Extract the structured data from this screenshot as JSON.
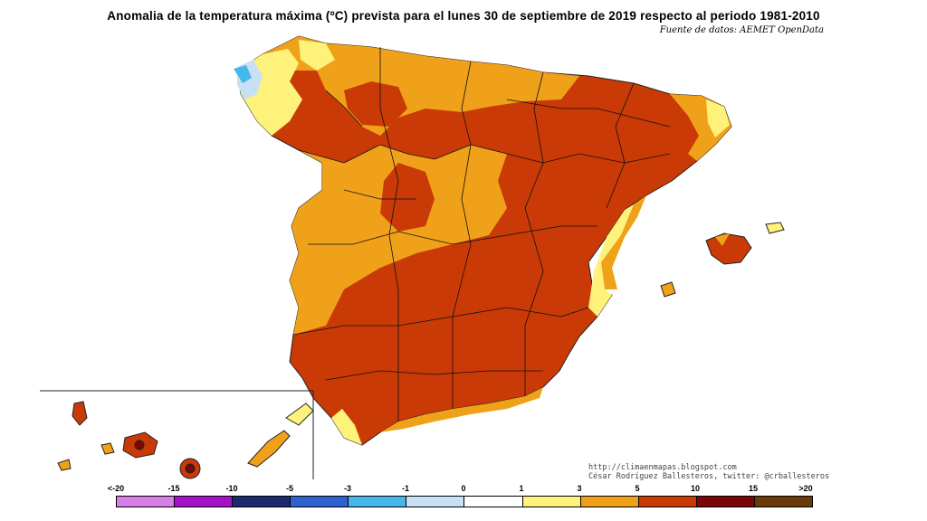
{
  "title": "Anomalia de la temperatura máxima (ºC) prevista para el lunes 30 de septiembre de 2019 respecto al periodo 1981-2010",
  "source": "Fuente de datos: AEMET OpenData",
  "credits": {
    "line1": "http://climaenmapas.blogspot.com",
    "line2": "César Rodríguez Ballesteros, twitter: @crballesteros"
  },
  "legend": {
    "labels": [
      "<-20",
      "-15",
      "-10",
      "-5",
      "-3",
      "-1",
      "0",
      "1",
      "3",
      "5",
      "10",
      "15",
      ">20"
    ],
    "colors": [
      "#d67fe6",
      "#a413c8",
      "#1c2b6e",
      "#2f62d0",
      "#44b8ea",
      "#c8e0f3",
      "#ffffff",
      "#fff27a",
      "#f0a11a",
      "#c93a06",
      "#7a0707",
      "#6a3a0a"
    ]
  },
  "colors": {
    "anomaly_1_3": "#fff27a",
    "anomaly_3_5": "#f0a11a",
    "anomaly_5_10": "#c93a06",
    "anomaly_10_15": "#7a0707",
    "anomaly_-3_-1": "#44b8ea",
    "anomaly_-1_0": "#c8e0f3"
  }
}
